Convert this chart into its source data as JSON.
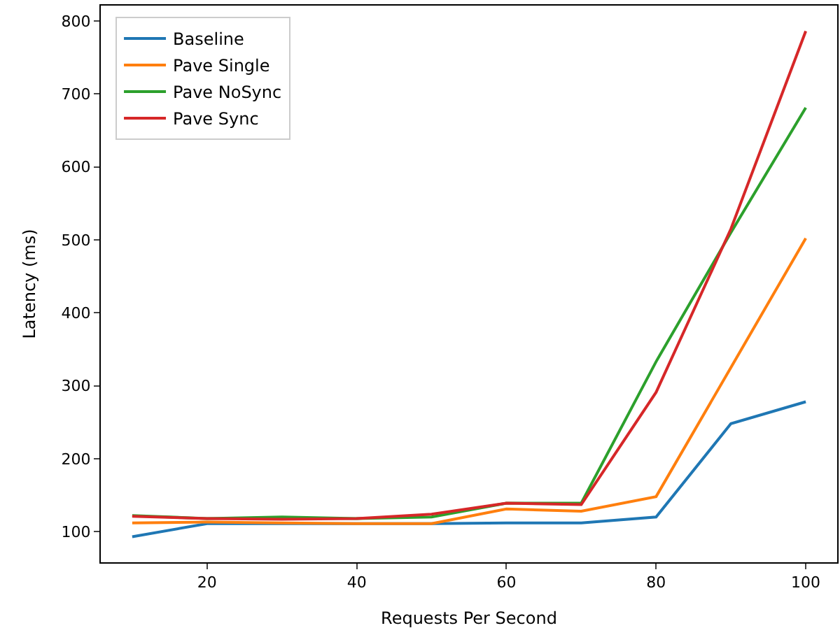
{
  "chart_data": {
    "type": "line",
    "xlabel": "Requests Per Second",
    "ylabel": "Latency (ms)",
    "x": [
      10,
      20,
      30,
      40,
      50,
      60,
      70,
      80,
      90,
      100
    ],
    "xlim": [
      5.8,
      104.2
    ],
    "ylim": [
      58,
      821
    ],
    "xticks": [
      20,
      40,
      60,
      80,
      100
    ],
    "yticks": [
      100,
      200,
      300,
      400,
      500,
      600,
      700,
      800
    ],
    "series": [
      {
        "name": "Baseline",
        "color": "#1f77b4",
        "values": [
          93,
          111,
          111,
          111,
          111,
          112,
          112,
          120,
          248,
          278
        ]
      },
      {
        "name": "Pave Single",
        "color": "#ff7f0e",
        "values": [
          112,
          113,
          112,
          111,
          111,
          131,
          128,
          148,
          325,
          502
        ]
      },
      {
        "name": "Pave NoSync",
        "color": "#2ca02c",
        "values": [
          122,
          118,
          120,
          118,
          120,
          139,
          139,
          333,
          510,
          681
        ]
      },
      {
        "name": "Pave Sync",
        "color": "#d62728",
        "values": [
          121,
          118,
          117,
          118,
          124,
          139,
          137,
          291,
          515,
          786
        ]
      }
    ],
    "legend": "top left"
  }
}
